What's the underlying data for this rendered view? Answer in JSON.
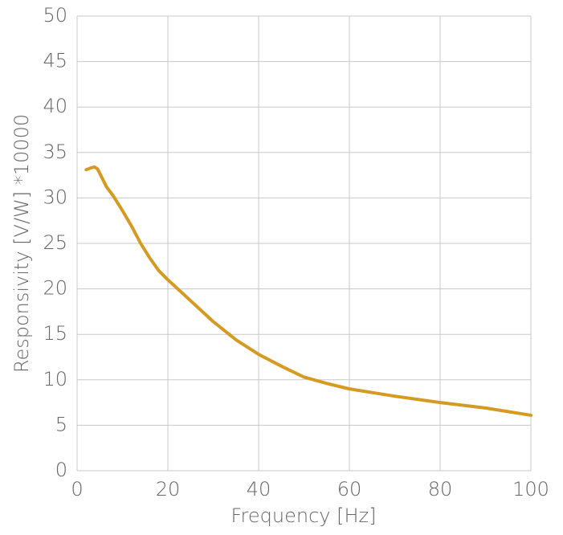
{
  "chart_data": {
    "type": "line",
    "x_label": "Frequency [Hz]",
    "y_label": "Responsivity [V/W] *10000",
    "series": [
      {
        "name": "Responsivity",
        "color": "#d49a22",
        "x": [
          2,
          3,
          3.8,
          4.5,
          5.5,
          6.5,
          8,
          10,
          12,
          14,
          16,
          18,
          20,
          25,
          30,
          35,
          40,
          45,
          50,
          55,
          60,
          70,
          80,
          90,
          100
        ],
        "values": [
          33.1,
          33.3,
          33.4,
          33.2,
          32.2,
          31.2,
          30.2,
          28.6,
          26.9,
          25.0,
          23.4,
          22.0,
          21.0,
          18.7,
          16.4,
          14.4,
          12.8,
          11.5,
          10.3,
          9.6,
          9.0,
          8.2,
          7.5,
          6.9,
          6.1
        ]
      }
    ],
    "xlim": [
      0,
      100
    ],
    "xticks": [
      0,
      20,
      40,
      60,
      80,
      100
    ],
    "ylim": [
      0,
      50
    ],
    "yticks": [
      0,
      5,
      10,
      15,
      20,
      25,
      30,
      35,
      40,
      45,
      50
    ],
    "grid": true
  }
}
